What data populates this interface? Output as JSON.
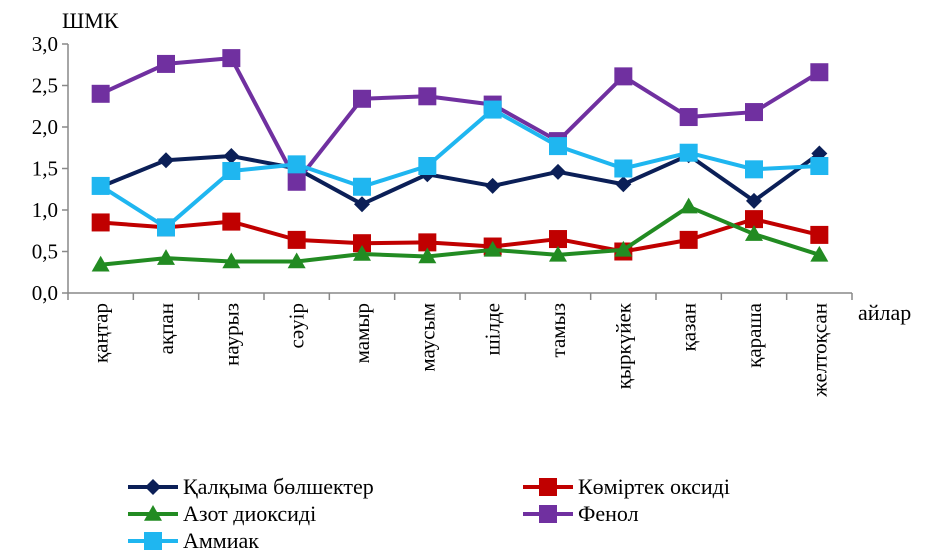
{
  "chart_data": {
    "type": "line",
    "ylabel": "ШМК",
    "xlabel": "айлар",
    "ylim": [
      0,
      3.0
    ],
    "yticks": [
      "0,0",
      "0,5",
      "1,0",
      "1,5",
      "2,0",
      "2,5",
      "3,0"
    ],
    "grid": false,
    "legend_position": "bottom",
    "categories": [
      "қаңтар",
      "ақпан",
      "наурыз",
      "сәуір",
      "мамыр",
      "маусым",
      "шілде",
      "тамыз",
      "қыркүйек",
      "қазан",
      "қараша",
      "желтоқсан"
    ],
    "series": [
      {
        "name": "Қалқыма бөлшектер",
        "color": "#0b1f57",
        "marker": "diamond",
        "values": [
          1.28,
          1.6,
          1.65,
          1.5,
          1.07,
          1.43,
          1.29,
          1.46,
          1.31,
          1.66,
          1.11,
          1.68
        ]
      },
      {
        "name": "Көміртек оксиді",
        "color": "#c00000",
        "marker": "square",
        "values": [
          0.85,
          0.79,
          0.86,
          0.64,
          0.6,
          0.61,
          0.56,
          0.65,
          0.5,
          0.64,
          0.89,
          0.7
        ]
      },
      {
        "name": "Азот диоксиді",
        "color": "#228b22",
        "marker": "triangle",
        "values": [
          0.34,
          0.42,
          0.38,
          0.38,
          0.47,
          0.44,
          0.52,
          0.46,
          0.52,
          1.04,
          0.71,
          0.46
        ]
      },
      {
        "name": "Фенол",
        "color": "#7030a0",
        "marker": "square",
        "values": [
          2.4,
          2.76,
          2.83,
          1.34,
          2.34,
          2.37,
          2.27,
          1.83,
          2.61,
          2.12,
          2.18,
          2.66
        ]
      },
      {
        "name": "Аммиак",
        "color": "#1fb6f0",
        "marker": "square",
        "values": [
          1.29,
          0.79,
          1.47,
          1.55,
          1.28,
          1.53,
          2.21,
          1.77,
          1.5,
          1.69,
          1.49,
          1.53
        ]
      }
    ]
  }
}
